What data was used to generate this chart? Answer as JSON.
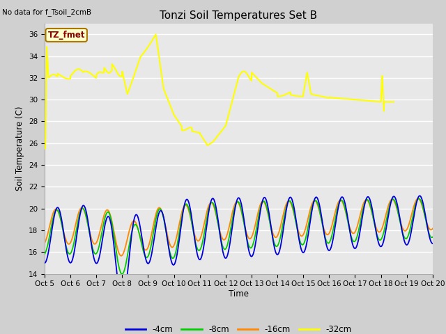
{
  "title": "Tonzi Soil Temperatures Set B",
  "no_data_label": "No data for f_Tsoil_2cmB",
  "tz_fmet_label": "TZ_fmet",
  "xlabel": "Time",
  "ylabel": "Soil Temperature (C)",
  "ylim": [
    14,
    37
  ],
  "yticks": [
    14,
    16,
    18,
    20,
    22,
    24,
    26,
    28,
    30,
    32,
    34,
    36
  ],
  "x_labels": [
    "Oct 5",
    "Oct 6",
    "Oct 7",
    "Oct 8",
    "Oct 9",
    "Oct 10",
    "Oct 11",
    "Oct 12",
    "Oct 13",
    "Oct 14",
    "Oct 15",
    "Oct 16",
    "Oct 17",
    "Oct 18",
    "Oct 19",
    "Oct 20"
  ],
  "n_days": 15,
  "colors": {
    "4cm": "#0000dd",
    "8cm": "#00cc00",
    "16cm": "#ff8800",
    "32cm": "#ffff00"
  },
  "legend_labels": [
    "-4cm",
    "-8cm",
    "-16cm",
    "-32cm"
  ],
  "fig_bg": "#d0d0d0",
  "plot_bg": "#e8e8e8",
  "grid_color": "#ffffff"
}
